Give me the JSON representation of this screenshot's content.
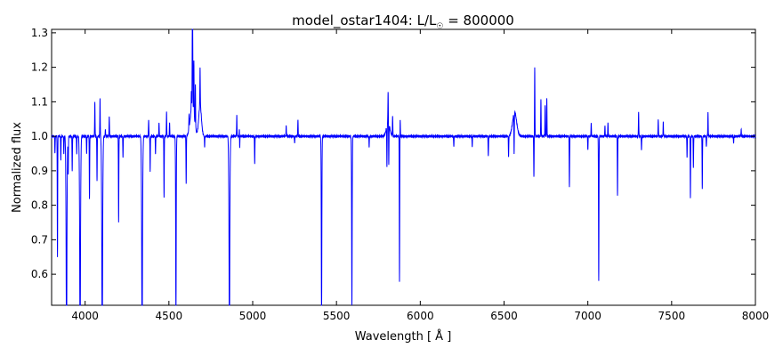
{
  "chart_data": {
    "type": "line",
    "title": "model_ostar1404: L/L☉ = 800000",
    "title_parts": {
      "prefix": "model_ostar1404: L/L",
      "subscript": "☉",
      "suffix": " = 800000"
    },
    "xlabel": "Wavelength [ Å ]",
    "ylabel": "Normalized flux",
    "xlim": [
      3800,
      8000
    ],
    "ylim": [
      0.51,
      1.31
    ],
    "xticks": [
      4000,
      4500,
      5000,
      5500,
      6000,
      6500,
      7000,
      7500,
      8000
    ],
    "yticks": [
      0.6,
      0.7,
      0.8,
      0.9,
      1.0,
      1.1,
      1.2,
      1.3
    ],
    "ytick_labels": [
      "0.6",
      "0.7",
      "0.8",
      "0.9",
      "1.0",
      "1.1",
      "1.2",
      "1.3"
    ],
    "grid": false,
    "line_color": "#0000ff",
    "continuum": 1.0,
    "broad_features": [
      {
        "center": 3889,
        "depth": -0.4,
        "width": 3
      },
      {
        "center": 3970,
        "depth": -0.41,
        "width": 3
      },
      {
        "center": 4102,
        "depth": -0.41,
        "width": 3
      },
      {
        "center": 4340,
        "depth": -0.39,
        "width": 3
      },
      {
        "center": 4542,
        "depth": -0.28,
        "width": 2
      },
      {
        "center": 4640,
        "depth": 0.09,
        "width": 12
      },
      {
        "center": 4686,
        "depth": 0.09,
        "width": 8
      },
      {
        "center": 4861,
        "depth": -0.36,
        "width": 3
      },
      {
        "center": 5411,
        "depth": -0.28,
        "width": 2
      },
      {
        "center": 5592,
        "depth": -0.25,
        "width": 2
      },
      {
        "center": 5808,
        "depth": 0.04,
        "width": 10
      },
      {
        "center": 6563,
        "depth": 0.07,
        "width": 12
      },
      {
        "center": 7065,
        "depth": -0.21,
        "width": 1.5
      }
    ],
    "sharp_lines": [
      [
        3820,
        -0.05
      ],
      [
        3835,
        -0.35
      ],
      [
        3855,
        -0.07
      ],
      [
        3873,
        -0.05
      ],
      [
        3889,
        -0.4
      ],
      [
        3899,
        -0.11
      ],
      [
        3923,
        -0.1
      ],
      [
        3950,
        -0.05
      ],
      [
        3970,
        -0.41
      ],
      [
        4009,
        -0.05
      ],
      [
        4026,
        -0.18
      ],
      [
        4058,
        0.1
      ],
      [
        4071,
        -0.13
      ],
      [
        4089,
        0.11
      ],
      [
        4102,
        -0.41
      ],
      [
        4121,
        0.02
      ],
      [
        4144,
        0.06
      ],
      [
        4200,
        -0.25
      ],
      [
        4226,
        -0.06
      ],
      [
        4340,
        -0.39
      ],
      [
        4379,
        0.05
      ],
      [
        4388,
        -0.1
      ],
      [
        4420,
        -0.05
      ],
      [
        4441,
        0.04
      ],
      [
        4471,
        -0.18
      ],
      [
        4486,
        0.07
      ],
      [
        4504,
        0.04
      ],
      [
        4542,
        -0.28
      ],
      [
        4603,
        -0.14
      ],
      [
        4620,
        0.04
      ],
      [
        4634,
        0.05
      ],
      [
        4640,
        0.25
      ],
      [
        4642,
        0.16
      ],
      [
        4649,
        0.15
      ],
      [
        4658,
        0.12
      ],
      [
        4686,
        0.11
      ],
      [
        4713,
        -0.03
      ],
      [
        4861,
        -0.36
      ],
      [
        4905,
        0.06
      ],
      [
        4922,
        -0.06
      ],
      [
        4921,
        0.05
      ],
      [
        5012,
        -0.08
      ],
      [
        5200,
        0.03
      ],
      [
        5250,
        -0.02
      ],
      [
        5270,
        0.05
      ],
      [
        5411,
        -0.28
      ],
      [
        5592,
        -0.25
      ],
      [
        5695,
        -0.03
      ],
      [
        5801,
        -0.12
      ],
      [
        5812,
        -0.12
      ],
      [
        5808,
        0.09
      ],
      [
        5876,
        -0.42
      ],
      [
        5835,
        0.06
      ],
      [
        5880,
        0.05
      ],
      [
        6200,
        -0.03
      ],
      [
        6310,
        -0.03
      ],
      [
        6406,
        -0.06
      ],
      [
        6527,
        -0.06
      ],
      [
        6560,
        -0.12
      ],
      [
        6683,
        0.2
      ],
      [
        6678,
        -0.12
      ],
      [
        6720,
        0.11
      ],
      [
        6745,
        0.09
      ],
      [
        6755,
        0.11
      ],
      [
        6890,
        -0.15
      ],
      [
        7000,
        -0.04
      ],
      [
        7020,
        0.04
      ],
      [
        7065,
        -0.21
      ],
      [
        7102,
        0.03
      ],
      [
        7120,
        0.04
      ],
      [
        7177,
        -0.17
      ],
      [
        7303,
        0.07
      ],
      [
        7320,
        -0.04
      ],
      [
        7420,
        0.05
      ],
      [
        7450,
        0.04
      ],
      [
        7592,
        -0.06
      ],
      [
        7612,
        -0.18
      ],
      [
        7630,
        -0.09
      ],
      [
        7683,
        -0.15
      ],
      [
        7707,
        -0.03
      ],
      [
        7717,
        0.07
      ],
      [
        7870,
        -0.02
      ],
      [
        7915,
        0.02
      ]
    ]
  }
}
